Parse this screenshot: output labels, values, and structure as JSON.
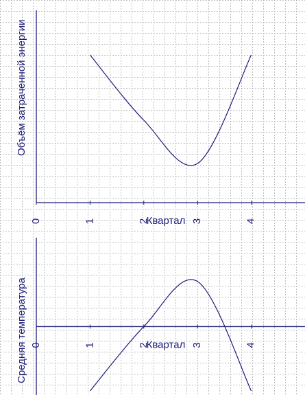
{
  "charts": [
    {
      "type": "line",
      "xlabel": "Квартал",
      "ylabel": "Объём затраченной энергии",
      "x": [
        1,
        2,
        3,
        4
      ],
      "xlim": [
        0,
        5
      ],
      "xticks": [
        0,
        1,
        2,
        3,
        4
      ],
      "ylim": [
        0,
        14
      ],
      "series": [
        {
          "color": "#1c1c7a",
          "values": [
            10.75,
            6,
            2.85,
            10.75
          ]
        }
      ]
    },
    {
      "type": "line",
      "xlabel": "Квартал",
      "ylabel": "Средняя температура",
      "x": [
        1,
        2,
        3,
        4
      ],
      "xlim": [
        0,
        5
      ],
      "xticks": [
        0,
        1,
        2,
        3,
        4
      ],
      "ylim": [
        -5,
        6.5
      ],
      "series": [
        {
          "color": "#1c1c7a",
          "values": [
            -4.7,
            0,
            3.3,
            -4.7
          ]
        }
      ]
    }
  ]
}
